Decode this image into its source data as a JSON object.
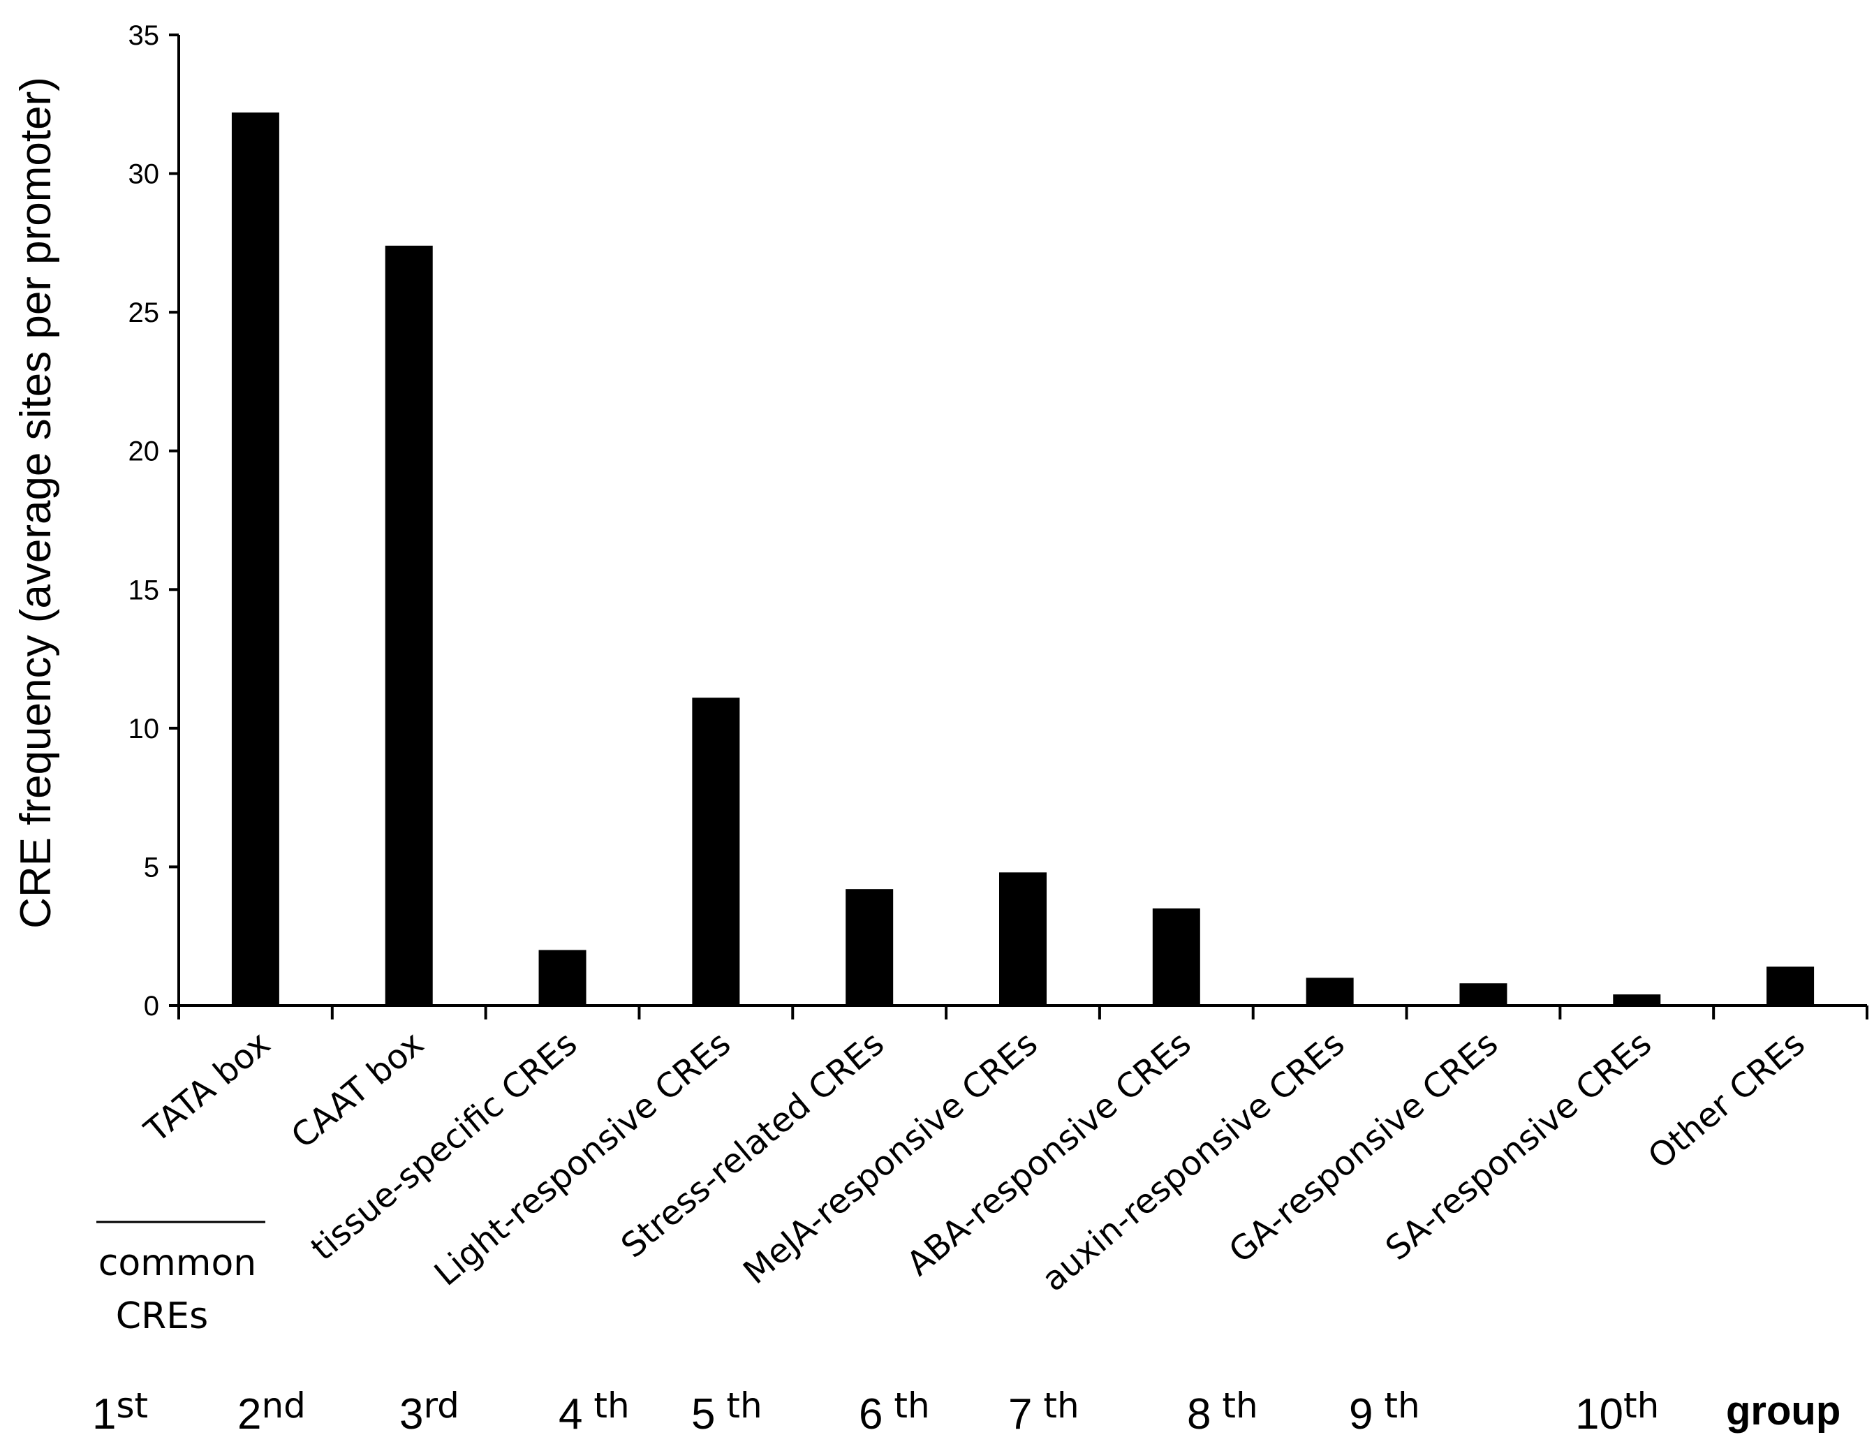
{
  "chart_data": {
    "type": "bar",
    "title": "",
    "xlabel": "",
    "ylabel": "CRE frequency (average sites per promoter)",
    "ylim": [
      0,
      35
    ],
    "yticks": [
      0,
      5,
      10,
      15,
      20,
      25,
      30,
      35
    ],
    "grid": false,
    "legend": false,
    "categories": [
      "TATA box",
      "CAAT box",
      "tissue-specific CREs",
      "Light-responsive CREs",
      "Stress-related CREs",
      "MeJA-responsive CREs",
      "ABA-responsive CREs",
      "auxin-responsive CREs",
      "GA-responsive CREs",
      "SA-responsive CREs",
      "Other CREs"
    ],
    "values": [
      32.2,
      27.4,
      2.0,
      11.1,
      4.2,
      4.8,
      3.5,
      1.0,
      0.8,
      0.4,
      1.4
    ],
    "bar_color": "#000000",
    "common_label_lines": [
      "common",
      "CREs"
    ],
    "groups": [
      {
        "num": "1",
        "suffix": "st"
      },
      {
        "num": "2",
        "suffix": "nd"
      },
      {
        "num": "3",
        "suffix": "rd"
      },
      {
        "num": "4",
        "suffix": " th"
      },
      {
        "num": "5",
        "suffix": " th"
      },
      {
        "num": "6",
        "suffix": " th"
      },
      {
        "num": "7",
        "suffix": " th"
      },
      {
        "num": "8",
        "suffix": " th"
      },
      {
        "num": "9",
        "suffix": " th"
      },
      {
        "num": "10",
        "suffix": "th"
      }
    ],
    "group_word": "group"
  }
}
